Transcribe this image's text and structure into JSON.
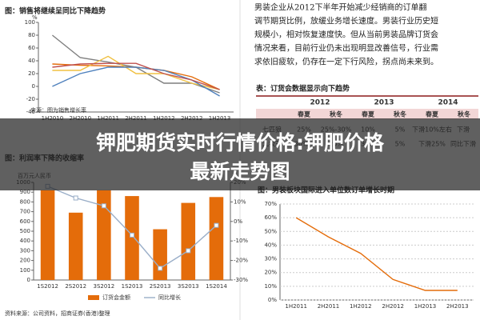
{
  "text": {
    "lines": [
      "男装企业从2012下半年开始减少经销商的订单翻",
      "调节期货比例，放缓业务增长速度。男装行业历史短",
      "规模小，相对恢复速度快。但从当前男装品牌订货会",
      "情况来看，目前行业仍未出现明显改善信号，行业需",
      "求依旧疲软，仍存在一定下行风险，拐点尚未来到。"
    ]
  },
  "table": {
    "title": "表：订货会数据显示向下趋势",
    "years": [
      "2012",
      "2013",
      "2014"
    ],
    "subheader": [
      "春夏",
      "秋冬",
      "春夏",
      "秋冬",
      "春夏",
      "秋冬"
    ],
    "rows": [
      [
        "七匹狼",
        "25%",
        "25%-30%",
        "10%",
        "5%",
        "下滑10%左右",
        "下滑"
      ],
      [
        "九牧王",
        "30%+",
        "20%",
        "36%",
        "5%",
        "下滑25%",
        "同比下滑"
      ]
    ]
  },
  "banner": {
    "lines": [
      "钾肥期货实时行情价格:钾肥价格",
      "最新走势图"
    ]
  },
  "chart_data": [
    {
      "type": "line",
      "title": "图：销售将继续呈同比下降趋势",
      "y_label": "%",
      "note": "来源：图为销售增长率",
      "categories": [
        "1H2010",
        "2H2010",
        "1H2011",
        "2H2011",
        "1H2012",
        "2H2012",
        "1H2013"
      ],
      "series": [
        {
          "color": "#7f7f7f",
          "values": [
            80,
            45,
            38,
            30,
            5,
            5,
            -10
          ]
        },
        {
          "color": "#e46c0a",
          "values": [
            35,
            33,
            32,
            30,
            25,
            15,
            -5
          ]
        },
        {
          "color": "#f0c040",
          "values": [
            25,
            25,
            47,
            20,
            20,
            5,
            -5
          ]
        },
        {
          "color": "#4f81bd",
          "values": [
            0,
            20,
            30,
            30,
            25,
            10,
            -15
          ]
        },
        {
          "color": "#c0504d",
          "values": [
            30,
            35,
            36,
            36,
            20,
            10,
            -5
          ]
        }
      ],
      "ylim": [
        -40,
        100
      ],
      "yticks": [
        -40,
        -20,
        0,
        20,
        40,
        60,
        80,
        100
      ],
      "grid": false
    },
    {
      "type": "bar",
      "title": "图：利润率下降的收缩率",
      "unit": "百万元人民币",
      "categories": [
        "1S2012",
        "2S2012",
        "3S2012",
        "1S2013",
        "2S2013",
        "3S2013",
        "1S2014"
      ],
      "series": [
        {
          "name": "订货会金额",
          "color": "#e46c0a",
          "values": [
            920,
            690,
            920,
            860,
            520,
            790,
            850
          ]
        },
        {
          "name": "同比增长",
          "color": "#9aaec8",
          "axis": "y2",
          "values": [
            18,
            12,
            8,
            -7,
            -24,
            -15,
            -2
          ]
        }
      ],
      "ylim": [
        0,
        1000
      ],
      "yticks": [
        0,
        100,
        200,
        300,
        400,
        500,
        600,
        700,
        800,
        900,
        1000
      ],
      "y2lim": [
        -30,
        20
      ],
      "y2ticks": [
        {
          "value": -30,
          "label": "-30%"
        },
        {
          "value": -20,
          "label": "-20%"
        },
        {
          "value": -10,
          "label": "-10%"
        },
        {
          "value": 0,
          "label": "0%"
        },
        {
          "value": 10,
          "label": "10%"
        },
        {
          "value": 20,
          "label": "20%"
        }
      ],
      "source": "资料来源：公司资料，招商证券(香港)整理"
    },
    {
      "type": "line",
      "title": "图：男装板块国际进入单位数订单增长时期",
      "categories": [
        "1H2011",
        "2H2011",
        "1H2012",
        "2H2012",
        "1H2013",
        "2H2013"
      ],
      "series": [
        {
          "color": "#e46c0a",
          "values": [
            60,
            46,
            34,
            15,
            7,
            7
          ]
        }
      ],
      "ylim": [
        0,
        70
      ],
      "yticks": [
        {
          "value": 0,
          "label": "0%"
        },
        {
          "value": 10,
          "label": "10%"
        },
        {
          "value": 20,
          "label": "20%"
        },
        {
          "value": 30,
          "label": "30%"
        },
        {
          "value": 40,
          "label": "40%"
        },
        {
          "value": 50,
          "label": "50%"
        },
        {
          "value": 60,
          "label": "60%"
        },
        {
          "value": 70,
          "label": "70%"
        }
      ],
      "grid": true
    }
  ]
}
